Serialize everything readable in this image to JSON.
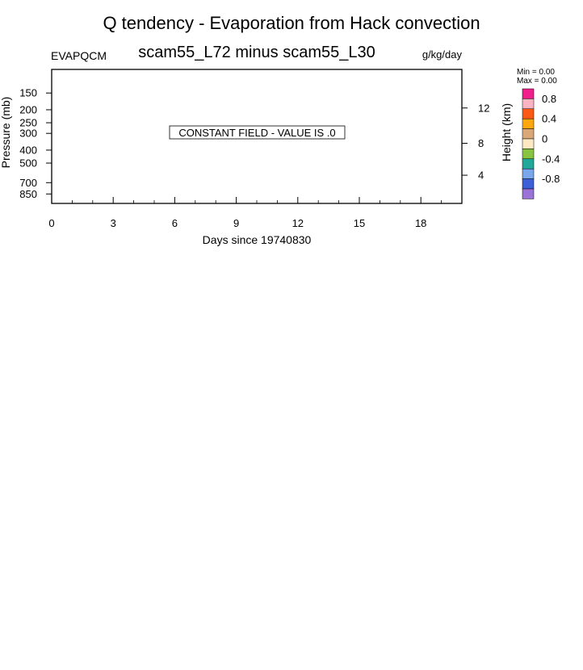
{
  "chart_data": {
    "type": "heatmap",
    "title": "Q tendency - Evaporation from Hack convection",
    "subtitle": "scam55_L72 minus scam55_L30",
    "left_label": "EVAPQCM",
    "right_label": "g/kg/day",
    "xlabel": "Days since 19740830",
    "ylabel": "Pressure (mb)",
    "y2label": "Height (km)",
    "xlim": [
      0,
      20
    ],
    "ylim": [
      1000,
      100
    ],
    "y_scale": "log",
    "x_ticks": [
      0,
      3,
      6,
      9,
      12,
      15,
      18
    ],
    "x_minor_step": 1,
    "y_ticks": [
      150,
      200,
      250,
      300,
      400,
      500,
      700,
      850
    ],
    "y2_ticks": [
      {
        "label": "4",
        "pressure": 616
      },
      {
        "label": "8",
        "pressure": 356
      },
      {
        "label": "12",
        "pressure": 194
      }
    ],
    "annotation": "CONSTANT FIELD - VALUE IS .0",
    "values": [],
    "min_label": "Min =   0.00",
    "max_label": "Max =   0.00",
    "colorbar": {
      "colors": [
        "#f01f8c",
        "#fbb4c4",
        "#fc5a14",
        "#fca70d",
        "#d8a878",
        "#fde8c4",
        "#88c341",
        "#21a89a",
        "#7aa7ec",
        "#3d5fd8",
        "#9a72d8"
      ],
      "labels": [
        "0.8",
        "0.4",
        "0",
        "-0.4",
        "-0.8"
      ]
    }
  }
}
